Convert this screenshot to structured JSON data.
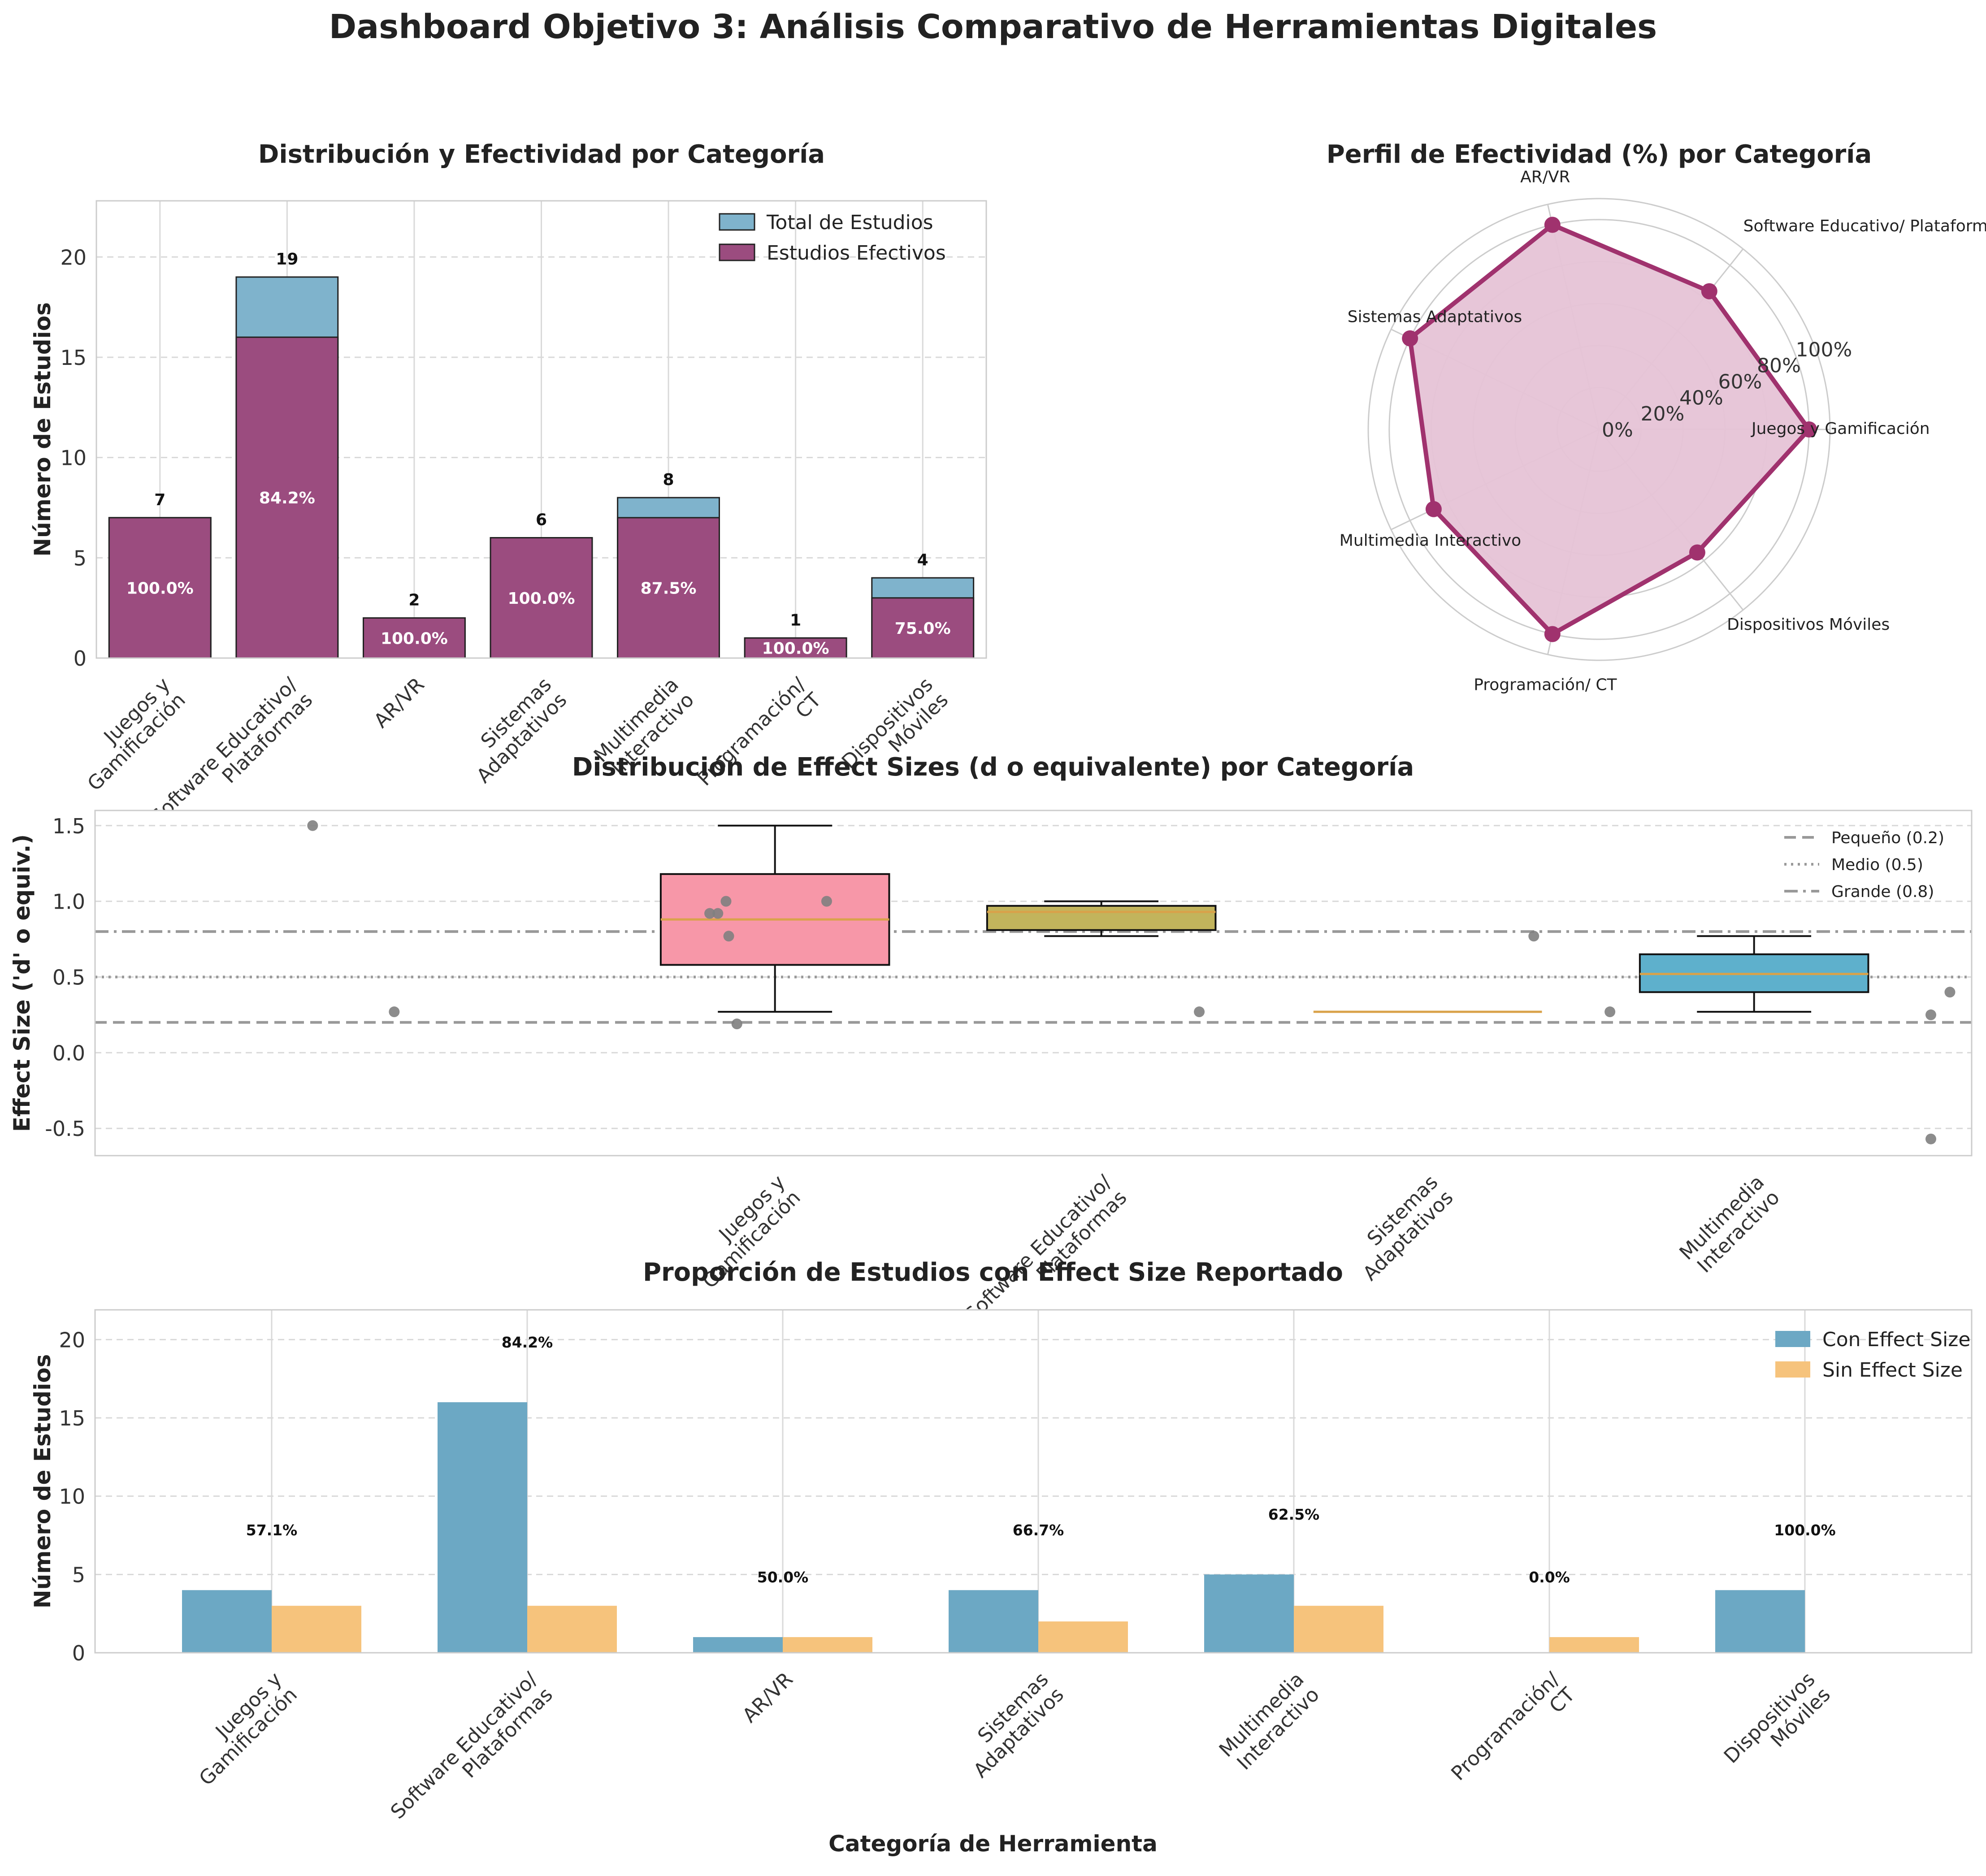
{
  "dashboard": {
    "title": "Dashboard Objetivo 3: Análisis Comparativo de Herramientas Digitales"
  },
  "colors": {
    "total": "#7fb3cc",
    "effective": "#9b4c7f",
    "radar_line": "#a0326e",
    "radar_fill": "#e6c3d6",
    "con_es": "#6ca8c4",
    "sin_es": "#f6c37c",
    "box_juegos": "#f797a8",
    "box_software": "#c2b45c",
    "box_sistemas": "#d8b24e",
    "box_multimedia": "#5eb0cc",
    "median": "#d9a24a",
    "points": "#808080",
    "threshold": "#999999"
  },
  "chart_data": [
    {
      "id": "bar-distribucion",
      "type": "bar",
      "title": "Distribución y Efectividad por Categoría",
      "xlabel": "",
      "ylabel": "Número de Estudios",
      "categories": [
        "Juegos y\nGamificación",
        "Software Educativo/\nPlataformas",
        "AR/VR",
        "Sistemas\nAdaptativos",
        "Multimedia\nInteractivo",
        "Programación/\nCT",
        "Dispositivos\nMóviles"
      ],
      "series": [
        {
          "name": "Total de Estudios",
          "values": [
            7,
            19,
            2,
            6,
            8,
            1,
            4
          ]
        },
        {
          "name": "Estudios Efectivos",
          "values": [
            7,
            16,
            2,
            6,
            7,
            1,
            3
          ]
        }
      ],
      "total_labels": [
        "7",
        "19",
        "2",
        "6",
        "8",
        "1",
        "4"
      ],
      "pct_labels": [
        "100.0%",
        "84.2%",
        "100.0%",
        "100.0%",
        "87.5%",
        "100.0%",
        "75.0%"
      ],
      "ylim": [
        0,
        22.8
      ],
      "yticks": [
        0,
        5,
        10,
        15,
        20
      ],
      "legend": "top-right",
      "grid": true
    },
    {
      "id": "radar-efectividad",
      "type": "radar",
      "title": "Perfil de Efectividad (%) por Categoría",
      "categories": [
        "Juegos y Gamificación",
        "Software Educativo/ Plataformas",
        "AR/VR",
        "Sistemas Adaptativos",
        "Multimedia Interactivo",
        "Programación/ CT",
        "Dispositivos Móviles"
      ],
      "values": [
        100.0,
        84.2,
        100.0,
        100.0,
        87.5,
        100.0,
        75.0
      ],
      "rticks": [
        "0%",
        "20%",
        "40%",
        "60%",
        "80%",
        "100%"
      ],
      "rlim": [
        0,
        110
      ],
      "grid": true
    },
    {
      "id": "box-effect-sizes",
      "type": "box",
      "title": "Distribución de Effect Sizes (d o equivalente) por Categoría",
      "xlabel": "",
      "ylabel": "Effect Size ('d' o equiv.)",
      "categories": [
        "Juegos y\nGamificación",
        "Software Educativo/\nPlataformas",
        "Sistemas\nAdaptativos",
        "Multimedia\nInteractivo"
      ],
      "boxes": [
        {
          "q1": 0.58,
          "median": 0.88,
          "q3": 1.18,
          "whisker_low": 0.27,
          "whisker_high": 1.5
        },
        {
          "q1": 0.81,
          "median": 0.93,
          "q3": 0.97,
          "whisker_low": 0.77,
          "whisker_high": 1.0
        },
        {
          "q1": 0.27,
          "median": 0.27,
          "q3": 0.27,
          "whisker_low": 0.27,
          "whisker_high": 0.27
        },
        {
          "q1": 0.4,
          "median": 0.52,
          "q3": 0.65,
          "whisker_low": 0.27,
          "whisker_high": 0.77
        }
      ],
      "points": [
        {
          "x": -0.1,
          "y": 1.5
        },
        {
          "x": 0.2,
          "y": 0.27
        },
        {
          "x": 1.36,
          "y": 0.92
        },
        {
          "x": 1.39,
          "y": 0.92
        },
        {
          "x": 1.42,
          "y": 1.0
        },
        {
          "x": 1.43,
          "y": 0.77
        },
        {
          "x": 1.46,
          "y": 0.19
        },
        {
          "x": 1.79,
          "y": 1.0
        },
        {
          "x": 3.16,
          "y": 0.27
        },
        {
          "x": 4.39,
          "y": 0.77
        },
        {
          "x": 4.67,
          "y": 0.27
        },
        {
          "x": 5.92,
          "y": 0.4
        },
        {
          "x": 5.85,
          "y": 0.25
        },
        {
          "x": 5.85,
          "y": -0.57
        }
      ],
      "x_positions": [
        1.6,
        2.8,
        4.0,
        5.2
      ],
      "xlim": [
        -0.9,
        6.0
      ],
      "thresholds": [
        {
          "name": "Pequeño (0.2)",
          "value": 0.2,
          "style": "dashed"
        },
        {
          "name": "Medio (0.5)",
          "value": 0.5,
          "style": "dotted"
        },
        {
          "name": "Grande (0.8)",
          "value": 0.8,
          "style": "dashdot"
        }
      ],
      "ylim": [
        -0.68,
        1.6
      ],
      "yticks": [
        -0.5,
        0.0,
        0.5,
        1.0,
        1.5
      ],
      "legend": "top-right",
      "grid": true
    },
    {
      "id": "bar-proporcion",
      "type": "bar",
      "title": "Proporción de Estudios con Effect Size Reportado",
      "xlabel": "Categoría de Herramienta",
      "ylabel": "Número de Estudios",
      "categories": [
        "Juegos y\nGamificación",
        "Software Educativo/\nPlataformas",
        "AR/VR",
        "Sistemas\nAdaptativos",
        "Multimedia\nInteractivo",
        "Programación/\nCT",
        "Dispositivos\nMóviles"
      ],
      "series": [
        {
          "name": "Con Effect Size",
          "values": [
            4,
            16,
            1,
            4,
            5,
            0,
            4
          ]
        },
        {
          "name": "Sin Effect Size",
          "values": [
            3,
            3,
            1,
            2,
            3,
            1,
            0
          ]
        }
      ],
      "pct_labels": [
        "57.1%",
        "84.2%",
        "50.0%",
        "66.7%",
        "62.5%",
        "0.0%",
        "100.0%"
      ],
      "ylim": [
        0,
        21.9
      ],
      "yticks": [
        0,
        5,
        10,
        15,
        20
      ],
      "legend": "top-right",
      "grid": true
    }
  ]
}
